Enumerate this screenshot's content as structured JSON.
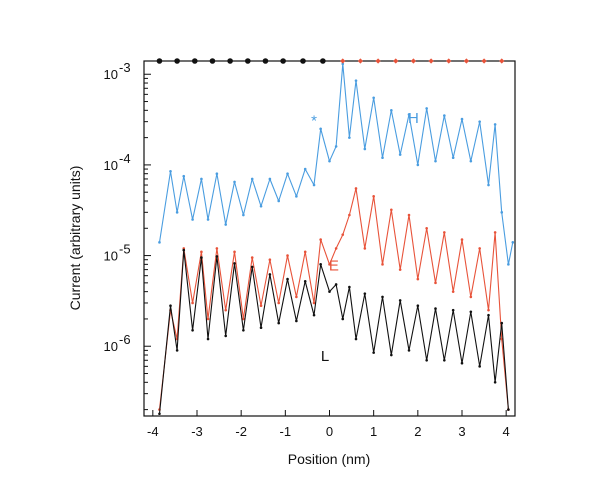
{
  "chart_data": {
    "type": "line",
    "title": "",
    "xlabel": "Position (nm)",
    "ylabel": "Current (arbitrary units)",
    "xscale": "linear",
    "yscale": "log",
    "xlim": [
      -4.2,
      4.2
    ],
    "ylim": [
      1.7e-07,
      0.0014
    ],
    "x_ticks": [
      -4,
      -3,
      -2,
      -1,
      0,
      1,
      2,
      3,
      4
    ],
    "x_tick_labels": [
      "-4",
      "-3",
      "-2",
      "-1",
      "0",
      "1",
      "2",
      "3",
      "4"
    ],
    "y_ticks": [
      1e-06,
      1e-05,
      0.0001,
      0.001
    ],
    "y_tick_labels": [
      {
        "base": "10",
        "exp": "-6"
      },
      {
        "base": "10",
        "exp": "-5"
      },
      {
        "base": "10",
        "exp": "-4"
      },
      {
        "base": "10",
        "exp": "-3"
      }
    ],
    "grid": false,
    "series": [
      {
        "name": "H",
        "color": "#4a9de0",
        "x": [
          -3.85,
          -3.6,
          -3.45,
          -3.3,
          -3.1,
          -2.9,
          -2.75,
          -2.55,
          -2.35,
          -2.15,
          -1.95,
          -1.75,
          -1.55,
          -1.35,
          -1.15,
          -0.95,
          -0.75,
          -0.55,
          -0.35,
          -0.2,
          0.0,
          0.15,
          0.3,
          0.45,
          0.6,
          0.8,
          1.0,
          1.2,
          1.4,
          1.6,
          1.8,
          2.0,
          2.2,
          2.4,
          2.6,
          2.8,
          3.0,
          3.2,
          3.4,
          3.6,
          3.75,
          3.9,
          4.05,
          4.15
        ],
        "y": [
          1.4e-05,
          8.5e-05,
          3e-05,
          7.5e-05,
          2.5e-05,
          7e-05,
          2.5e-05,
          8e-05,
          2.2e-05,
          6.5e-05,
          2.8e-05,
          7e-05,
          3.5e-05,
          7e-05,
          4e-05,
          8e-05,
          4.5e-05,
          9e-05,
          6e-05,
          0.00025,
          0.00011,
          0.00016,
          0.0013,
          0.0002,
          0.00085,
          0.00015,
          0.00055,
          0.00012,
          0.0004,
          0.00013,
          0.00036,
          0.0001,
          0.00042,
          0.00011,
          0.00035,
          0.00012,
          0.00032,
          0.00011,
          0.0003,
          6e-05,
          0.00028,
          3e-05,
          8e-06,
          1.4e-05
        ]
      },
      {
        "name": "E",
        "color": "#e8533a",
        "x": [
          -3.85,
          -3.6,
          -3.45,
          -3.3,
          -3.1,
          -2.9,
          -2.75,
          -2.55,
          -2.35,
          -2.15,
          -1.95,
          -1.75,
          -1.55,
          -1.35,
          -1.15,
          -0.95,
          -0.75,
          -0.55,
          -0.35,
          -0.2,
          0.0,
          0.15,
          0.3,
          0.45,
          0.6,
          0.8,
          1.0,
          1.2,
          1.4,
          1.6,
          1.8,
          2.0,
          2.2,
          2.4,
          2.6,
          2.8,
          3.0,
          3.2,
          3.4,
          3.6,
          3.75,
          3.9,
          4.05
        ],
        "y": [
          2e-07,
          2.5e-06,
          1.2e-06,
          1.2e-05,
          3e-06,
          1.1e-05,
          2e-06,
          1.2e-05,
          2.5e-06,
          1.1e-05,
          2e-06,
          9.5e-06,
          2.8e-06,
          9e-06,
          3e-06,
          1e-05,
          3.5e-06,
          1.1e-05,
          3e-06,
          1.5e-05,
          8e-06,
          1.2e-05,
          1.7e-05,
          2.8e-05,
          5.5e-05,
          1.2e-05,
          4.5e-05,
          8e-06,
          3.2e-05,
          7e-06,
          2.8e-05,
          5.5e-06,
          2e-05,
          5e-06,
          1.8e-05,
          4e-06,
          1.5e-05,
          3.5e-06,
          1.2e-05,
          2.5e-06,
          1.8e-05,
          1.2e-06,
          2e-07
        ]
      },
      {
        "name": "L",
        "color": "#111111",
        "x": [
          -3.85,
          -3.6,
          -3.45,
          -3.3,
          -3.1,
          -2.9,
          -2.75,
          -2.55,
          -2.35,
          -2.15,
          -1.95,
          -1.75,
          -1.55,
          -1.35,
          -1.15,
          -0.95,
          -0.75,
          -0.55,
          -0.35,
          -0.2,
          0.0,
          0.15,
          0.3,
          0.45,
          0.6,
          0.8,
          1.0,
          1.2,
          1.4,
          1.6,
          1.8,
          2.0,
          2.2,
          2.4,
          2.6,
          2.8,
          3.0,
          3.2,
          3.4,
          3.6,
          3.75,
          3.9,
          4.05
        ],
        "y": [
          1.8e-07,
          2.8e-06,
          9e-07,
          1.15e-05,
          1.5e-06,
          9.5e-06,
          1.2e-06,
          9.8e-06,
          1.3e-06,
          8.2e-06,
          1.5e-06,
          7.5e-06,
          1.6e-06,
          6.2e-06,
          1.8e-06,
          5.5e-06,
          1.9e-06,
          5.2e-06,
          2.2e-06,
          8e-06,
          4e-06,
          4.8e-06,
          2e-06,
          4.5e-06,
          1.2e-06,
          3.8e-06,
          8.5e-07,
          3.5e-06,
          8e-07,
          3.2e-06,
          9e-07,
          2.8e-06,
          7e-07,
          2.6e-06,
          7e-07,
          2.5e-06,
          6.5e-07,
          2.4e-06,
          6e-07,
          2.2e-06,
          4e-07,
          1.8e-06,
          2e-07
        ]
      }
    ],
    "annotations": [
      {
        "text": "H",
        "x": 1.9,
        "y": 0.00033,
        "color": "#4a9de0"
      },
      {
        "text": "E",
        "x": 0.1,
        "y": 7.8e-06,
        "color": "#e8533a"
      },
      {
        "text": "L",
        "x": -0.1,
        "y": 7.8e-07,
        "color": "#111111"
      },
      {
        "text": "*",
        "x": -0.35,
        "y": 0.00031,
        "color": "#4a9de0"
      }
    ],
    "top_markers": [
      {
        "color": "#111111",
        "x": [
          -3.85,
          -3.45,
          -3.05,
          -2.65,
          -2.25,
          -1.85,
          -1.45,
          -1.05,
          -0.6,
          -0.15
        ]
      },
      {
        "color": "#e8533a",
        "x": [
          0.3,
          0.7,
          1.1,
          1.5,
          1.9,
          2.3,
          2.7,
          3.1,
          3.5,
          3.9
        ]
      }
    ]
  }
}
